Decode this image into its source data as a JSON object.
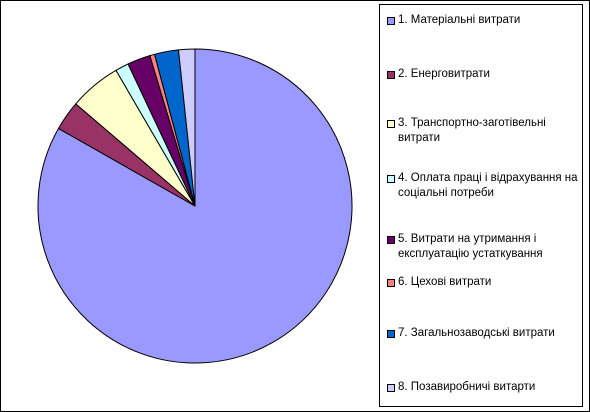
{
  "chart_data": {
    "type": "pie",
    "start_angle_deg": 0,
    "direction": "clockwise",
    "slices": [
      {
        "label": "1. Матеріальні витрати",
        "value": 84.3,
        "color": "#9999ff"
      },
      {
        "label": "2. Енерговитрати",
        "value": 3.1,
        "color": "#993366"
      },
      {
        "label": "3. Транспортно-заготівельні витрати",
        "value": 5.4,
        "color": "#ffffcc"
      },
      {
        "label": "4. Оплата праці і відрахування на соціальні потреби",
        "value": 1.4,
        "color": "#ccffff"
      },
      {
        "label": "5. Витрати на утримання і експлуатацію устаткування",
        "value": 2.4,
        "color": "#660066"
      },
      {
        "label": "6. Цехові витрати",
        "value": 0.5,
        "color": "#ff8080"
      },
      {
        "label": "7. Загальнозаводські витрати",
        "value": 2.5,
        "color": "#0066cc"
      },
      {
        "label": "8. Позавиробничі витарти",
        "value": 1.7,
        "color": "#ccccff"
      }
    ],
    "legend_position": "right"
  }
}
